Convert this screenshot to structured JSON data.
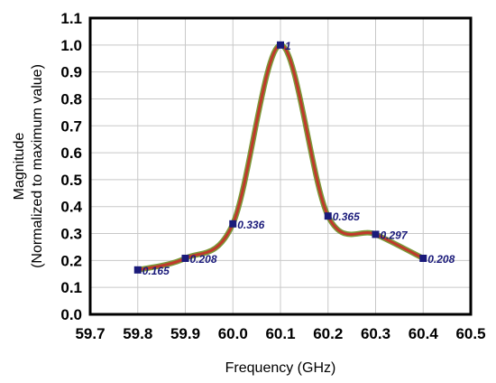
{
  "chart_data": {
    "type": "line",
    "title": "",
    "xlabel": "Frequency (GHz)",
    "ylabel_line1": "Magnitude",
    "ylabel_line2": "(Normalized to maximum value)",
    "xlim": [
      59.7,
      60.5
    ],
    "ylim": [
      0.0,
      1.1
    ],
    "grid": true,
    "x_ticks": [
      "59.7",
      "59.8",
      "59.9",
      "60.0",
      "60.1",
      "60.2",
      "60.3",
      "60.4",
      "60.5"
    ],
    "y_ticks": [
      "0.0",
      "0.1",
      "0.2",
      "0.3",
      "0.4",
      "0.5",
      "0.6",
      "0.7",
      "0.8",
      "0.9",
      "1.0",
      "1.1"
    ],
    "series": [
      {
        "x": [
          59.8,
          59.9,
          60.0,
          60.1,
          60.2,
          60.3,
          60.4
        ],
        "y": [
          0.165,
          0.208,
          0.336,
          1,
          0.365,
          0.297,
          0.208
        ],
        "labels": [
          "0.165",
          "0.208",
          "0.336",
          "1",
          "0.365",
          "0.297",
          "0.208"
        ]
      }
    ],
    "colors": {
      "line": "#c0392b",
      "line_glow": "#6b8e23",
      "marker": "#1a1a7a",
      "label": "#1a1a7a"
    }
  }
}
